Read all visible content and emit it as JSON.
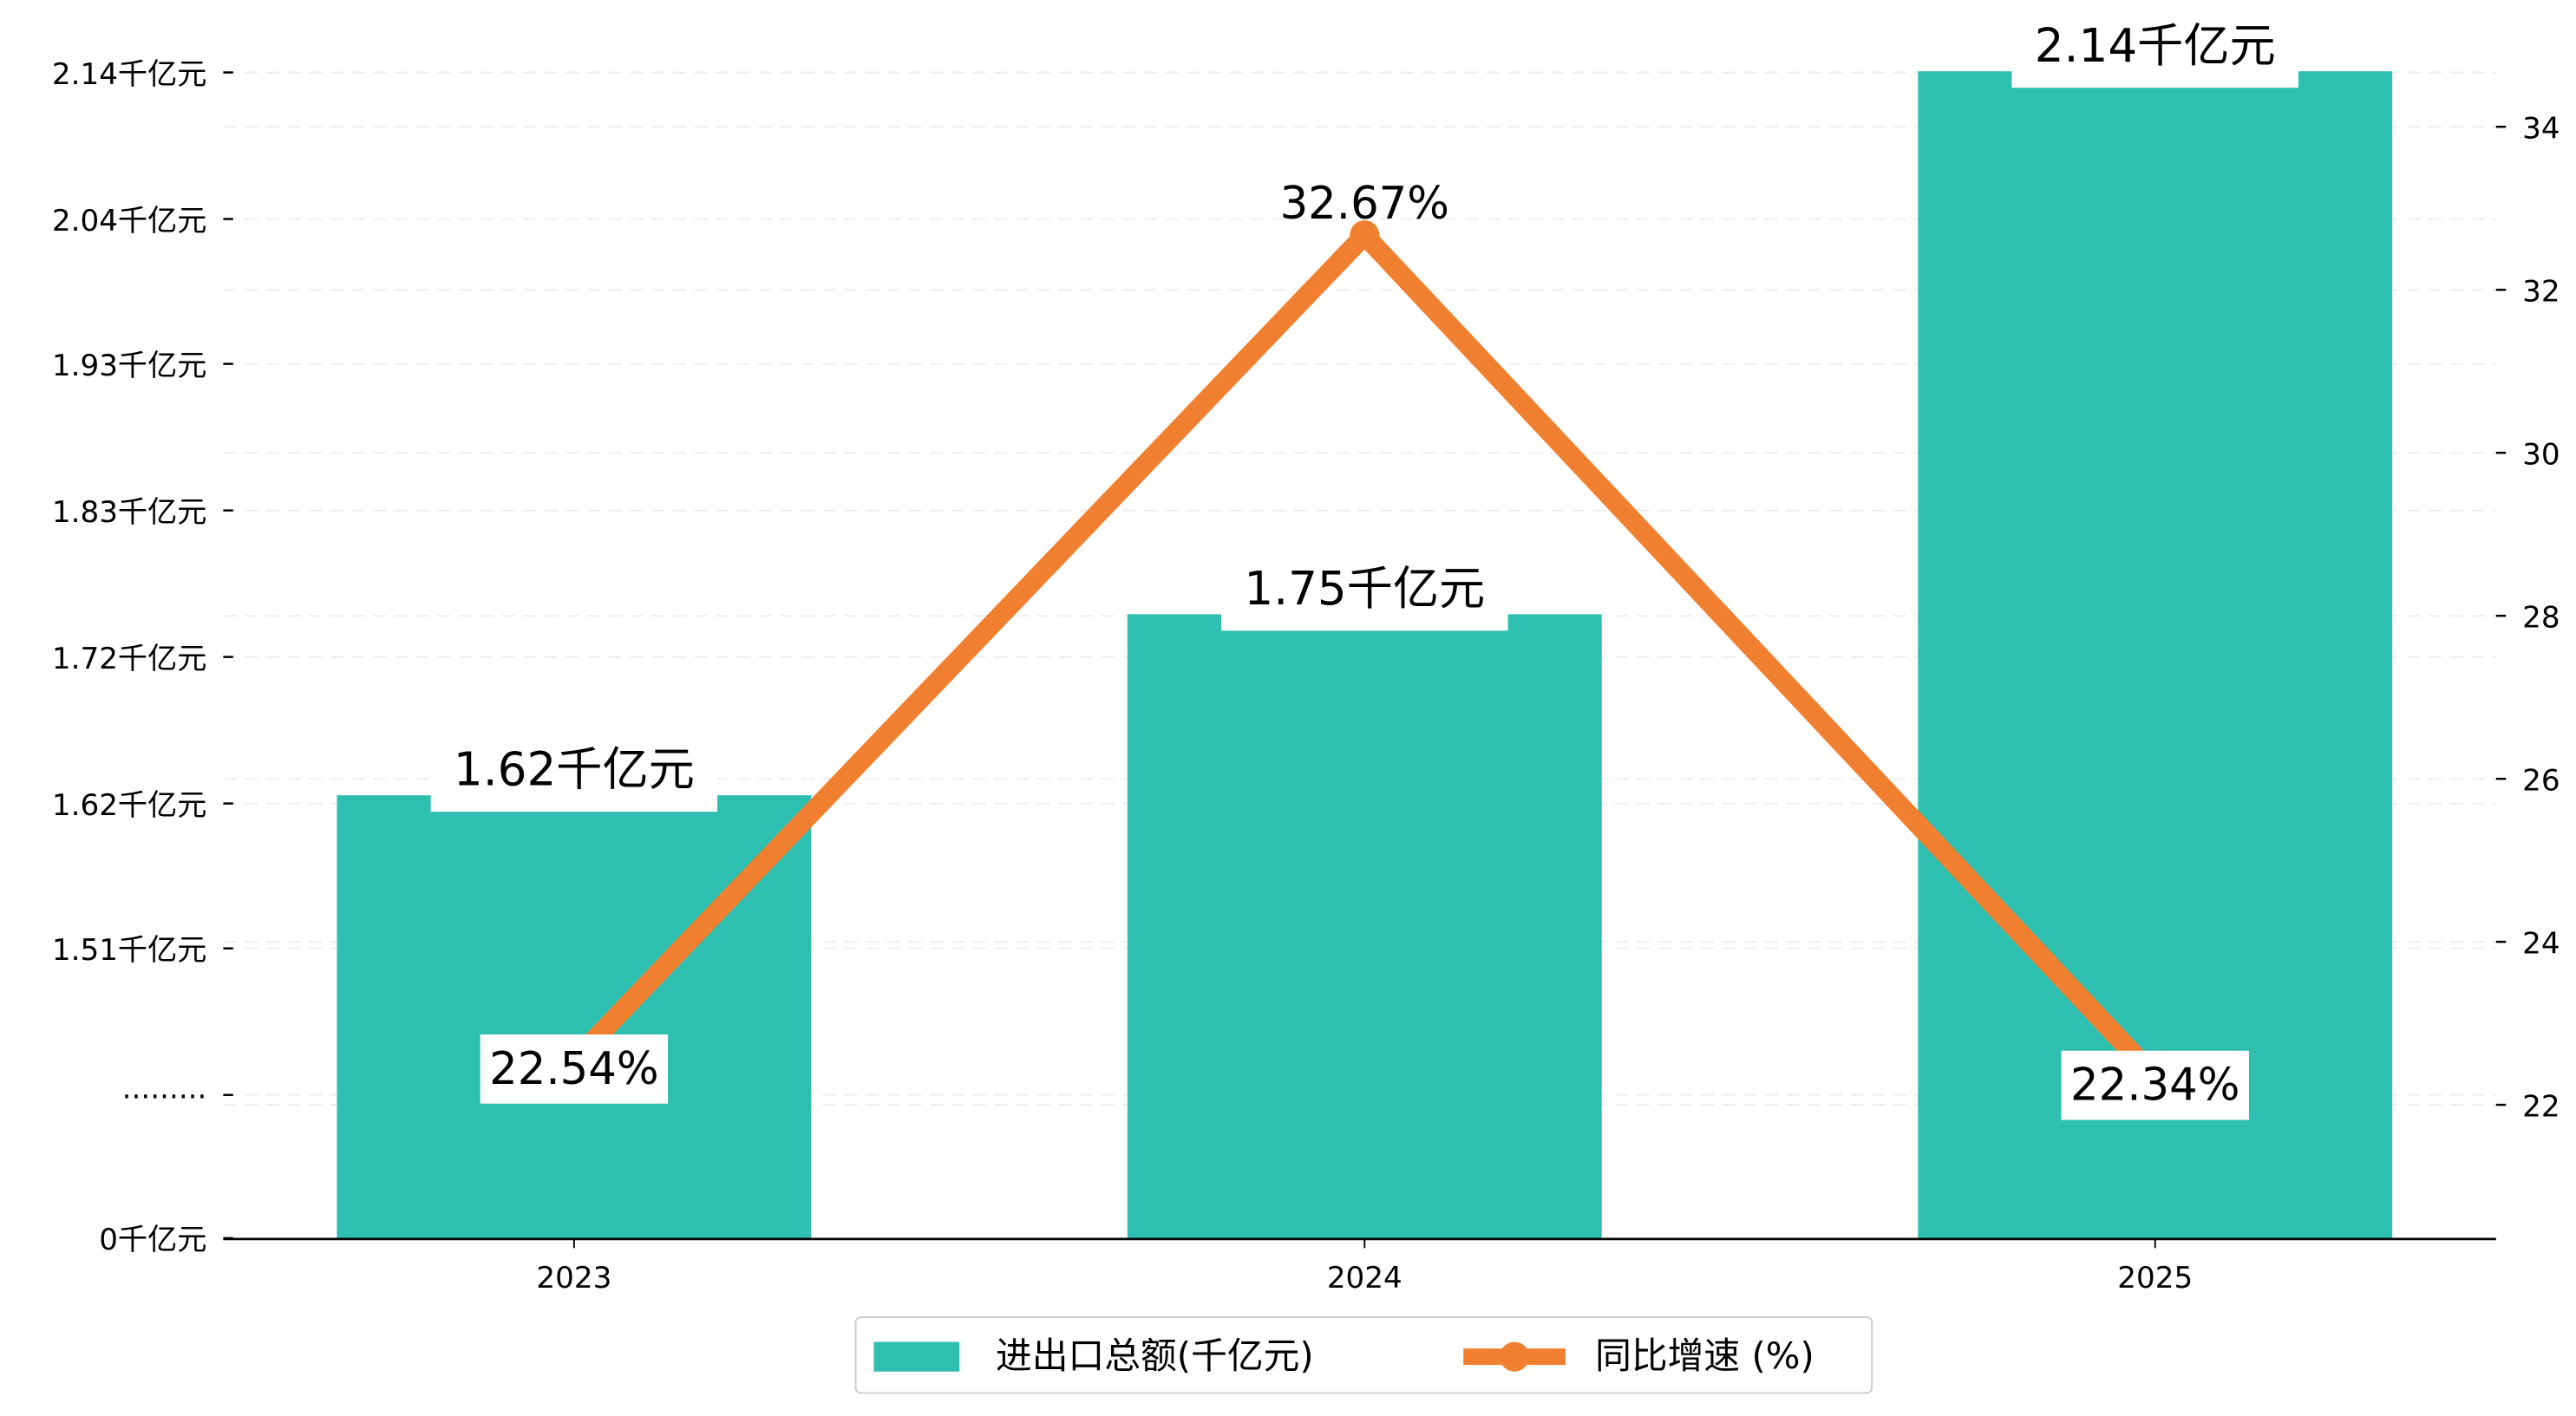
{
  "chart_data": {
    "type": "bar+line",
    "categories": [
      "2023",
      "2024",
      "2025"
    ],
    "series": [
      {
        "name": "进出口总额(千亿元)",
        "type": "bar",
        "axis": "left",
        "values": [
          1.62,
          1.75,
          2.14
        ],
        "labels": [
          "1.62千亿元",
          "1.75千亿元",
          "2.14千亿元"
        ],
        "color": "#2ebfb1"
      },
      {
        "name": "同比增速 (%)",
        "type": "line",
        "axis": "right",
        "values": [
          22.54,
          32.67,
          22.34
        ],
        "labels": [
          "22.54%",
          "32.67%",
          "22.34%"
        ],
        "color": "#f08030"
      }
    ],
    "left_axis": {
      "tick_labels": [
        "0千亿元",
        "·········",
        "1.51千亿元",
        "1.62千亿元",
        "1.72千亿元",
        "1.83千亿元",
        "1.93千亿元",
        "2.04千亿元",
        "2.14千亿元"
      ],
      "break": true
    },
    "right_axis": {
      "ticks": [
        22,
        24,
        26,
        28,
        30,
        32,
        34
      ],
      "ylim": [
        20.5,
        34.7
      ]
    },
    "grid": true,
    "legend": "bottom-center"
  }
}
